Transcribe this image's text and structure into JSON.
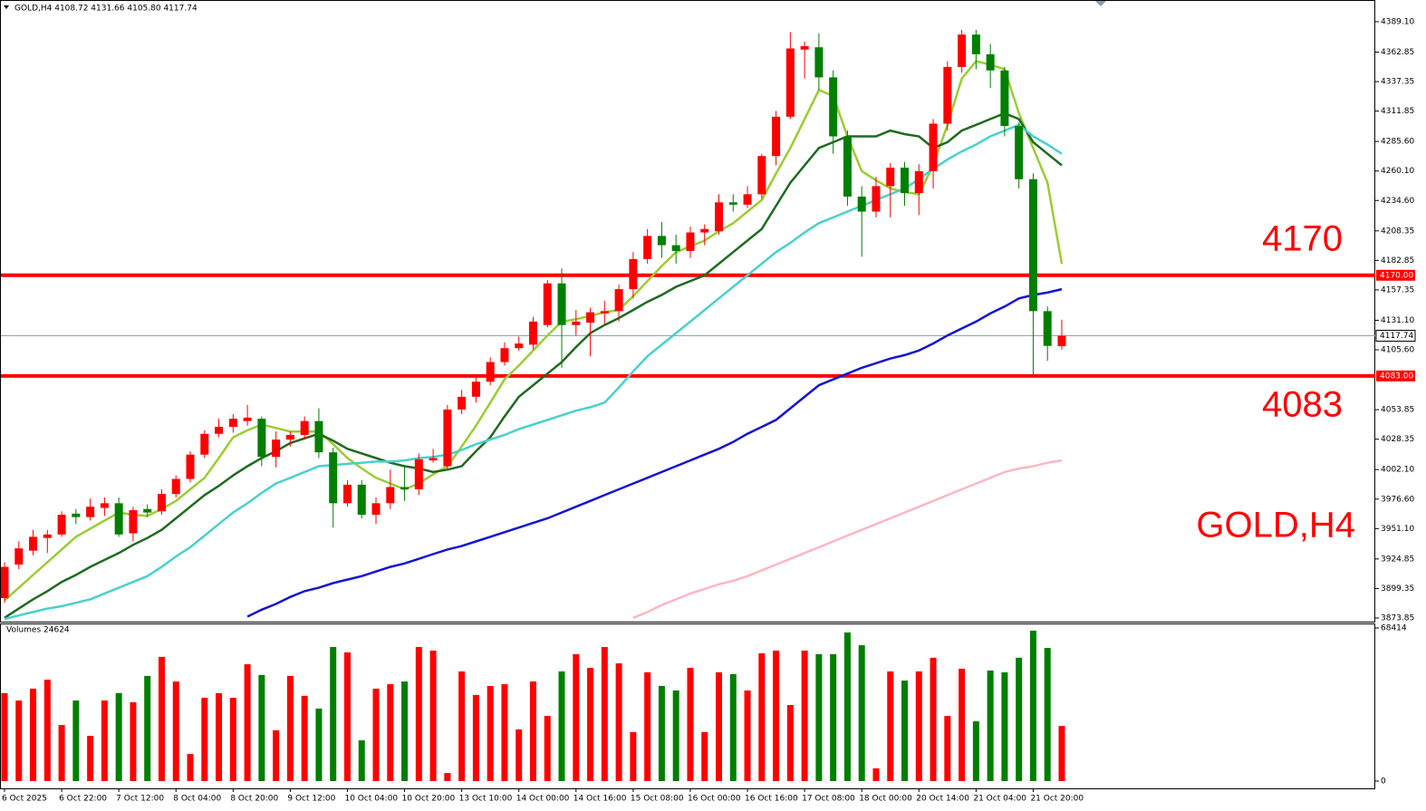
{
  "chart_data": {
    "type": "candlestick",
    "header": "GOLD,H4  4108.72 4131.66 4105.80 4117.74",
    "watermark": "GOLD,H4",
    "volume_header": "Volumes 24624",
    "up_color": "#ff0000",
    "down_color": "#007f00",
    "categories": [
      "6 Oct 2025",
      null,
      null,
      null,
      "6 Oct 22:00",
      null,
      null,
      null,
      "7 Oct 12:00",
      null,
      null,
      null,
      "8 Oct 04:00",
      null,
      null,
      null,
      "8 Oct 20:00",
      null,
      null,
      null,
      "9 Oct 12:00",
      null,
      null,
      null,
      "10 Oct 04:00",
      null,
      null,
      null,
      "10 Oct 20:00",
      null,
      null,
      null,
      "13 Oct 10:00",
      null,
      null,
      null,
      "14 Oct 00:00",
      null,
      null,
      null,
      "14 Oct 16:00",
      null,
      null,
      null,
      "15 Oct 08:00",
      null,
      null,
      null,
      "16 Oct 00:00",
      null,
      null,
      null,
      "16 Oct 16:00",
      null,
      null,
      null,
      "17 Oct 08:00",
      null,
      null,
      null,
      "18 Oct 00:00",
      null,
      null,
      null,
      "20 Oct 14:00",
      null,
      null,
      null,
      "21 Oct 04:00",
      null,
      null,
      null,
      "21 Oct 20:00",
      null,
      null
    ],
    "open": [
      3891,
      3920,
      3932,
      3943,
      3946,
      3964,
      3961,
      3969,
      3973,
      3947,
      3968,
      3966,
      3981,
      3994,
      4015,
      4033,
      4039,
      4044,
      4046,
      4013,
      4028,
      4032,
      4044,
      4017,
      3973,
      3989,
      3963,
      3973,
      3987,
      3985,
      4010,
      4005,
      4054,
      4065,
      4078,
      4095,
      4107,
      4110,
      4127,
      4163,
      4127,
      4129,
      4137,
      4139,
      4158,
      4184,
      4204,
      4196,
      4191,
      4207,
      4208,
      4233,
      4231,
      4240,
      4273,
      4307,
      4365,
      4367,
      4341,
      4290,
      4238,
      4225,
      4247,
      4263,
      4241,
      4260,
      4301,
      4350,
      4378,
      4361,
      4347,
      4299,
      4253,
      4139,
      4108.72
    ],
    "high": [
      3922,
      3940,
      3950,
      3950,
      3966,
      3968,
      3977,
      3978,
      3978,
      3970,
      3972,
      3985,
      3997,
      4018,
      4036,
      4046,
      4050,
      4058,
      4048,
      4035,
      4035,
      4048,
      4055,
      4021,
      3993,
      3993,
      3978,
      4002,
      4005,
      4016,
      4020,
      4058,
      4071,
      4082,
      4099,
      4112,
      4117,
      4134,
      4166,
      4176,
      4140,
      4142,
      4148,
      4162,
      4190,
      4210,
      4216,
      4205,
      4212,
      4214,
      4240,
      4240,
      4247,
      4275,
      4312,
      4380,
      4372,
      4379,
      4347,
      4295,
      4247,
      4255,
      4267,
      4268,
      4266,
      4305,
      4355,
      4382,
      4382,
      4370,
      4350,
      4302,
      4258,
      4143,
      4131.66
    ],
    "low": [
      3887,
      3916,
      3928,
      3930,
      3944,
      3955,
      3958,
      3962,
      3944,
      3940,
      3961,
      3963,
      3978,
      3991,
      4012,
      4030,
      4034,
      4040,
      4005,
      4004,
      4022,
      4028,
      4012,
      3952,
      3970,
      3960,
      3955,
      3968,
      3975,
      3980,
      4008,
      4002,
      4050,
      4060,
      4075,
      4092,
      4105,
      4106,
      4125,
      4090,
      4118,
      4100,
      4128,
      4130,
      4150,
      4180,
      4185,
      4180,
      4185,
      4196,
      4205,
      4225,
      4228,
      4236,
      4265,
      4305,
      4340,
      4330,
      4275,
      4230,
      4186,
      4220,
      4220,
      4230,
      4222,
      4245,
      4295,
      4345,
      4348,
      4332,
      4290,
      4245,
      4083,
      4096,
      4105.8
    ],
    "close": [
      3918,
      3934,
      3944,
      3946,
      3963,
      3961,
      3970,
      3973,
      3946,
      3967,
      3965,
      3981,
      3994,
      4015,
      4033,
      4039,
      4046,
      4047,
      4013,
      4028,
      4032,
      4044,
      4017,
      3973,
      3989,
      3963,
      3973,
      3987,
      3985,
      4011,
      4012,
      4054,
      4065,
      4078,
      4095,
      4107,
      4111,
      4130,
      4163,
      4127,
      4130,
      4138,
      4139,
      4158,
      4184,
      4204,
      4196,
      4191,
      4207,
      4210,
      4233,
      4231,
      4240,
      4273,
      4307,
      4366,
      4368,
      4341,
      4290,
      4238,
      4225,
      4247,
      4263,
      4241,
      4260,
      4301,
      4350,
      4378,
      4361,
      4347,
      4299,
      4253,
      4139,
      4109,
      4117.74
    ],
    "series": [
      {
        "color": "#9acd32",
        "values": [
          3889,
          3900,
          3911,
          3922,
          3933,
          3944,
          3951,
          3958,
          3965,
          3963,
          3962,
          3968,
          3975,
          3985,
          3995,
          4012,
          4030,
          4036,
          4041,
          4038,
          4035,
          4035,
          4035,
          4024,
          4012,
          4003,
          3995,
          3990,
          3985,
          3990,
          3998,
          4005,
          4022,
          4040,
          4060,
          4080,
          4092,
          4105,
          4118,
          4130,
          4132,
          4135,
          4138,
          4140,
          4152,
          4165,
          4178,
          4190,
          4195,
          4200,
          4208,
          4215,
          4225,
          4235,
          4258,
          4280,
          4305,
          4330,
          4325,
          4290,
          4260,
          4252,
          4245,
          4242,
          4240,
          4265,
          4300,
          4340,
          4355,
          4352,
          4348,
          4310,
          4280,
          4250,
          4180
        ]
      },
      {
        "color": "#1e6b1e",
        "values": [
          3874,
          3882,
          3890,
          3897,
          3905,
          3911,
          3918,
          3924,
          3930,
          3937,
          3943,
          3950,
          3960,
          3970,
          3980,
          3988,
          3997,
          4005,
          4012,
          4018,
          4025,
          4029,
          4033,
          4027,
          4020,
          4016,
          4012,
          4008,
          4005,
          4003,
          4000,
          4002,
          4005,
          4018,
          4030,
          4048,
          4065,
          4075,
          4085,
          4095,
          4108,
          4120,
          4127,
          4133,
          4140,
          4147,
          4153,
          4160,
          4165,
          4170,
          4180,
          4190,
          4200,
          4210,
          4230,
          4250,
          4265,
          4280,
          4285,
          4290,
          4290,
          4290,
          4295,
          4292,
          4290,
          4280,
          4285,
          4295,
          4300,
          4305,
          4310,
          4305,
          4285,
          4275,
          4265
        ]
      },
      {
        "color": "#48d1cc",
        "values": [
          3873,
          3876,
          3879,
          3882,
          3884,
          3887,
          3890,
          3895,
          3900,
          3905,
          3910,
          3918,
          3927,
          3935,
          3945,
          3955,
          3965,
          3973,
          3982,
          3990,
          3995,
          4000,
          4005,
          4006,
          4007,
          4008,
          4009,
          4009,
          4010,
          4012,
          4013,
          4015,
          4019,
          4024,
          4028,
          4032,
          4037,
          4041,
          4045,
          4049,
          4053,
          4056,
          4060,
          4073,
          4087,
          4100,
          4110,
          4120,
          4130,
          4140,
          4150,
          4160,
          4170,
          4180,
          4190,
          4198,
          4207,
          4215,
          4220,
          4225,
          4230,
          4235,
          4240,
          4245,
          4253,
          4262,
          4270,
          4277,
          4283,
          4290,
          4295,
          4300,
          4290,
          4283,
          4275
        ]
      },
      {
        "color": "#1414d2",
        "values": [
          null,
          null,
          null,
          null,
          null,
          null,
          null,
          null,
          null,
          null,
          null,
          null,
          null,
          null,
          null,
          null,
          null,
          3875,
          3881,
          3886,
          3892,
          3897,
          3900,
          3904,
          3907,
          3910,
          3914,
          3918,
          3921,
          3925,
          3929,
          3933,
          3936,
          3940,
          3944,
          3948,
          3952,
          3956,
          3960,
          3965,
          3970,
          3975,
          3980,
          3985,
          3990,
          3995,
          4000,
          4005,
          4010,
          4015,
          4020,
          4026,
          4033,
          4039,
          4045,
          4055,
          4065,
          4075,
          4080,
          4085,
          4090,
          4094,
          4098,
          4101,
          4105,
          4111,
          4118,
          4124,
          4130,
          4137,
          4143,
          4150,
          4153,
          4155,
          4158
        ]
      },
      {
        "color": "#ffb6c1",
        "values": [
          null,
          null,
          null,
          null,
          null,
          null,
          null,
          null,
          null,
          null,
          null,
          null,
          null,
          null,
          null,
          null,
          null,
          null,
          null,
          null,
          null,
          null,
          null,
          null,
          null,
          null,
          null,
          null,
          null,
          null,
          null,
          null,
          null,
          null,
          null,
          null,
          null,
          null,
          null,
          null,
          null,
          null,
          null,
          null,
          3874,
          3879,
          3885,
          3890,
          3895,
          3899,
          3903,
          3906,
          3910,
          3915,
          3920,
          3925,
          3930,
          3935,
          3940,
          3945,
          3950,
          3955,
          3960,
          3965,
          3970,
          3975,
          3980,
          3985,
          3990,
          3995,
          4000,
          4003,
          4005,
          4008,
          4010
        ]
      }
    ],
    "volumes": [
      39300,
      36000,
      41300,
      45300,
      25100,
      36000,
      20200,
      36000,
      39300,
      35200,
      47000,
      55500,
      44500,
      12100,
      37200,
      39300,
      37200,
      52200,
      47400,
      22700,
      47000,
      38100,
      32400,
      59900,
      57500,
      18200,
      41300,
      43300,
      44500,
      59900,
      58300,
      3600,
      49000,
      38500,
      42500,
      43300,
      23100,
      44500,
      29100,
      49000,
      56700,
      50600,
      59900,
      52600,
      21900,
      48600,
      42500,
      40500,
      50600,
      21900,
      48600,
      47800,
      40500,
      57100,
      58300,
      34000,
      58300,
      56700,
      56700,
      66400,
      60700,
      5700,
      49000,
      44900,
      49000,
      55100,
      29100,
      50200,
      26700,
      49400,
      48600,
      55100,
      67200,
      59500,
      24624
    ],
    "ylim": [
      3870.7,
      4406.3
    ],
    "yticks": [
      {
        "value": 4389.1,
        "label": "4389.10"
      },
      {
        "value": 4362.85,
        "label": "4362.85"
      },
      {
        "value": 4337.35,
        "label": "4337.35"
      },
      {
        "value": 4311.85,
        "label": "4311.85"
      },
      {
        "value": 4285.6,
        "label": "4285.60"
      },
      {
        "value": 4260.1,
        "label": "4260.10"
      },
      {
        "value": 4234.6,
        "label": "4234.60"
      },
      {
        "value": 4208.35,
        "label": "4208.35"
      },
      {
        "value": 4182.85,
        "label": "4182.85"
      },
      {
        "value": 4157.35,
        "label": "4157.35"
      },
      {
        "value": 4131.1,
        "label": "4131.10"
      },
      {
        "value": 4105.6,
        "label": "4105.60"
      },
      {
        "value": 4053.85,
        "label": "4053.85"
      },
      {
        "value": 4028.35,
        "label": "4028.35"
      },
      {
        "value": 4002.1,
        "label": "4002.10"
      },
      {
        "value": 3976.6,
        "label": "3976.60"
      },
      {
        "value": 3951.1,
        "label": "3951.10"
      },
      {
        "value": 3924.85,
        "label": "3924.85"
      },
      {
        "value": 3899.35,
        "label": "3899.35"
      },
      {
        "value": 3873.85,
        "label": "3873.85"
      }
    ],
    "volume_ylim": [
      0,
      68414
    ],
    "volume_yticks": [
      68414,
      0
    ],
    "levels": [
      {
        "value": 4170,
        "label": "4170.00",
        "text": "4170",
        "color": "#ff0000"
      },
      {
        "value": 4083,
        "label": "4083.00",
        "text": "4083",
        "color": "#ff0000"
      }
    ],
    "last_price": {
      "value": 4117.74,
      "label": "4117.74",
      "color": "#8fa3b8"
    }
  }
}
